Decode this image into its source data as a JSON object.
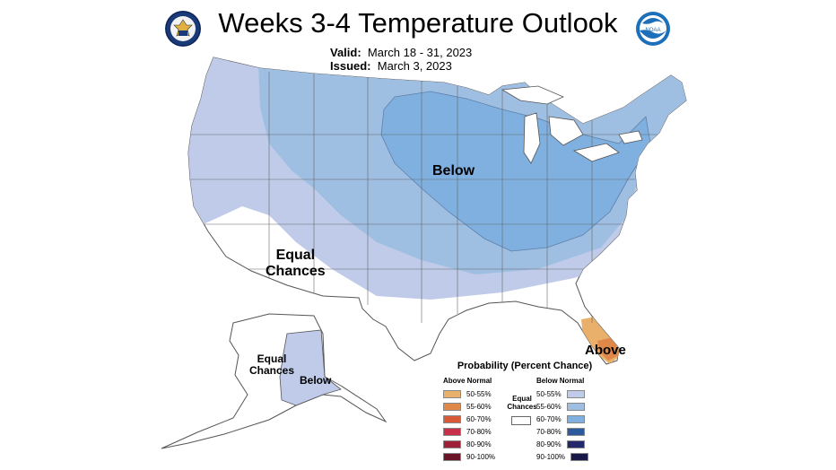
{
  "title": "Weeks 3-4 Temperature Outlook",
  "valid_label": "Valid:",
  "valid_value": "March 18 - 31, 2023",
  "issued_label": "Issued:",
  "issued_value": "March 3, 2023",
  "logos": {
    "left": "commerce-seal-icon",
    "right": "noaa-logo-icon"
  },
  "regions": {
    "below_conus": "Below",
    "equal_conus": "Equal\nChances",
    "above_florida": "Above",
    "equal_alaska": "Equal\nChances",
    "below_alaska": "Below"
  },
  "legend": {
    "title": "Probability (Percent Chance)",
    "above_heading": "Above Normal",
    "below_heading": "Below Normal",
    "equal_label": "Equal\nChances",
    "above": [
      {
        "label": "50-55%",
        "color": "#e8b06a"
      },
      {
        "label": "55-60%",
        "color": "#e0884a"
      },
      {
        "label": "60-70%",
        "color": "#d85a38"
      },
      {
        "label": "70-80%",
        "color": "#c8304a"
      },
      {
        "label": "80-90%",
        "color": "#9e2038"
      },
      {
        "label": "90-100%",
        "color": "#6a1428"
      }
    ],
    "below": [
      {
        "label": "50-55%",
        "color": "#bfcbe8"
      },
      {
        "label": "55-60%",
        "color": "#9fbfe2"
      },
      {
        "label": "60-70%",
        "color": "#7fb0e0"
      },
      {
        "label": "70-80%",
        "color": "#2c5a9c"
      },
      {
        "label": "80-90%",
        "color": "#22286a"
      },
      {
        "label": "90-100%",
        "color": "#181848"
      }
    ]
  },
  "colors": {
    "below_50_55": "#bfcbe8",
    "below_55_60": "#9fbfe2",
    "below_60_70": "#7fb0e0",
    "above_50_55": "#e8b06a",
    "above_55_60": "#e0884a"
  }
}
